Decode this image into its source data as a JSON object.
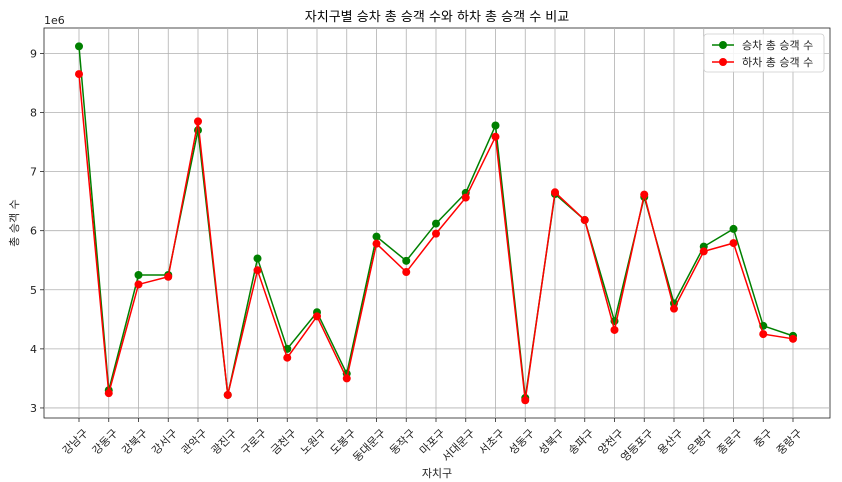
{
  "chart_data": {
    "type": "line",
    "title": "자치구별 승차 총 승객 수와 하차 총 승객 수 비교",
    "xlabel": "자치구",
    "ylabel": "총 승객 수",
    "y_offset_label": "1e6",
    "ylim": [
      2.83,
      9.43
    ],
    "y_ticks": [
      3,
      4,
      5,
      6,
      7,
      8,
      9
    ],
    "grid": true,
    "legend_position": "top-right",
    "categories": [
      "강남구",
      "강동구",
      "강북구",
      "강서구",
      "관악구",
      "광진구",
      "구로구",
      "금천구",
      "노원구",
      "도봉구",
      "동대문구",
      "동작구",
      "마포구",
      "서대문구",
      "서초구",
      "성동구",
      "성북구",
      "송파구",
      "양천구",
      "영등포구",
      "용산구",
      "은평구",
      "종로구",
      "중구",
      "중랑구"
    ],
    "series": [
      {
        "name": "승차 총 승객 수",
        "color": "#008000",
        "values": [
          9.12,
          3.3,
          5.25,
          5.25,
          7.7,
          3.22,
          5.53,
          4.0,
          4.62,
          3.58,
          5.9,
          5.49,
          6.12,
          6.64,
          7.78,
          3.17,
          6.62,
          6.18,
          4.47,
          6.57,
          4.77,
          5.73,
          6.03,
          4.39,
          4.22
        ]
      },
      {
        "name": "하차 총 승객 수",
        "color": "#ff0000",
        "values": [
          8.65,
          3.25,
          5.09,
          5.22,
          7.85,
          3.22,
          5.33,
          3.85,
          4.55,
          3.5,
          5.78,
          5.3,
          5.95,
          6.56,
          7.59,
          3.13,
          6.65,
          6.18,
          4.32,
          6.61,
          4.68,
          5.65,
          5.79,
          4.25,
          4.17
        ]
      }
    ]
  }
}
